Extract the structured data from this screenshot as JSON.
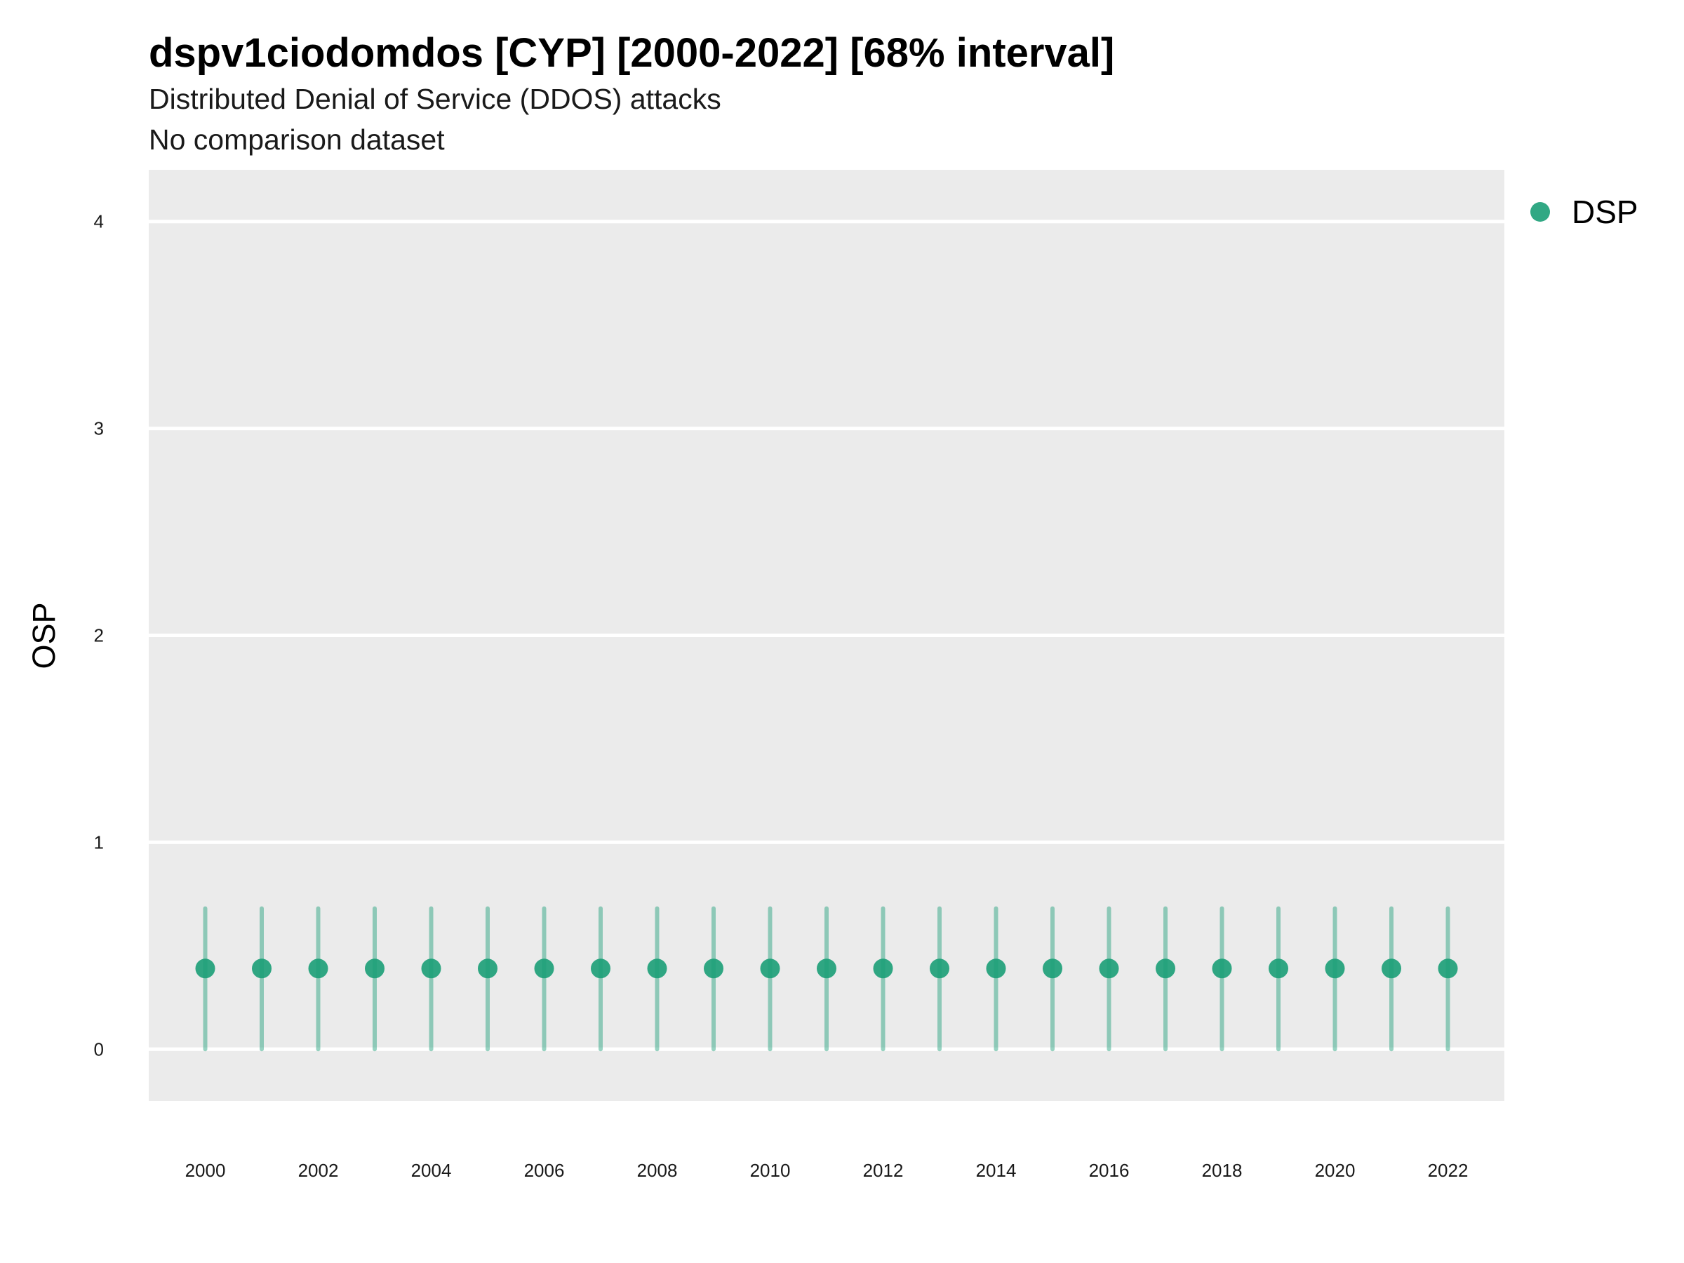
{
  "chart_data": {
    "type": "scatter",
    "title": "dspv1ciodomdos [CYP] [2000-2022] [68% interval]",
    "subtitle": "Distributed Denial of Service (DDOS) attacks",
    "caption_line": "No comparison dataset",
    "xlabel": "",
    "ylabel": "OSP",
    "ylim": [
      -0.25,
      4.25
    ],
    "yticks": [
      0,
      1,
      2,
      3,
      4
    ],
    "xlim": [
      1999,
      2023
    ],
    "xticks": [
      2000,
      2002,
      2004,
      2006,
      2008,
      2010,
      2012,
      2014,
      2016,
      2018,
      2020,
      2022
    ],
    "grid": true,
    "legend_position": "right",
    "colors": {
      "series": "#1b9e77",
      "panel": "#ebebeb",
      "grid": "#ffffff"
    },
    "series": [
      {
        "name": "DSP",
        "x": [
          2000,
          2001,
          2002,
          2003,
          2004,
          2005,
          2006,
          2007,
          2008,
          2009,
          2010,
          2011,
          2012,
          2013,
          2014,
          2015,
          2016,
          2017,
          2018,
          2019,
          2020,
          2021,
          2022
        ],
        "y": [
          0.39,
          0.39,
          0.39,
          0.39,
          0.39,
          0.39,
          0.39,
          0.39,
          0.39,
          0.39,
          0.39,
          0.39,
          0.39,
          0.39,
          0.39,
          0.39,
          0.39,
          0.39,
          0.39,
          0.39,
          0.39,
          0.39,
          0.39
        ],
        "lower": [
          0.0,
          0.0,
          0.0,
          0.0,
          0.0,
          0.0,
          0.0,
          0.0,
          0.0,
          0.0,
          0.0,
          0.0,
          0.0,
          0.0,
          0.0,
          0.0,
          0.0,
          0.0,
          0.0,
          0.0,
          0.0,
          0.0,
          0.0
        ],
        "upper": [
          0.68,
          0.68,
          0.68,
          0.68,
          0.68,
          0.68,
          0.68,
          0.68,
          0.68,
          0.68,
          0.68,
          0.68,
          0.68,
          0.68,
          0.68,
          0.68,
          0.68,
          0.68,
          0.68,
          0.68,
          0.68,
          0.68,
          0.68
        ]
      }
    ]
  }
}
